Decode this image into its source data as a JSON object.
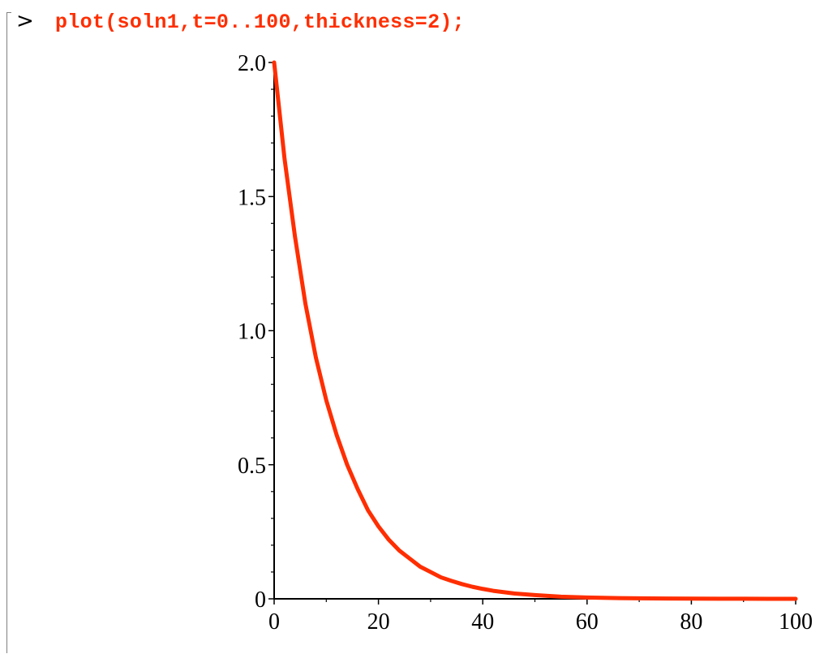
{
  "command": {
    "prompt": ">",
    "text": "plot(soln1,t=0..100,thickness=2);",
    "color": "#ff2e00"
  },
  "chart_data": {
    "type": "line",
    "title": "",
    "xlabel": "",
    "ylabel": "",
    "xlim": [
      0,
      100
    ],
    "ylim": [
      0,
      2.0
    ],
    "x_ticks": [
      0,
      20,
      40,
      60,
      80,
      100
    ],
    "x_tick_labels": [
      "0",
      "20",
      "40",
      "60",
      "80",
      "100"
    ],
    "y_ticks": [
      0,
      0.5,
      1.0,
      1.5,
      2.0
    ],
    "y_tick_labels": [
      "0",
      "0.5",
      "1.0",
      "1.5",
      "2.0"
    ],
    "grid": false,
    "series": [
      {
        "color": "#ff2e00",
        "x": [
          0,
          2,
          4,
          6,
          8,
          10,
          12,
          14,
          16,
          18,
          20,
          22,
          24,
          26,
          28,
          30,
          32,
          34,
          36,
          38,
          40,
          42,
          44,
          46,
          48,
          50,
          55,
          60,
          65,
          70,
          75,
          80,
          85,
          90,
          95,
          100
        ],
        "y": [
          2.0,
          1.64,
          1.35,
          1.1,
          0.9,
          0.74,
          0.61,
          0.5,
          0.41,
          0.33,
          0.27,
          0.22,
          0.18,
          0.15,
          0.12,
          0.1,
          0.08,
          0.067,
          0.055,
          0.045,
          0.037,
          0.03,
          0.025,
          0.02,
          0.017,
          0.014,
          0.008,
          0.005,
          0.003,
          0.002,
          0.001,
          0.0007,
          0.0004,
          0.0002,
          0.0001,
          0.0001
        ]
      }
    ]
  }
}
